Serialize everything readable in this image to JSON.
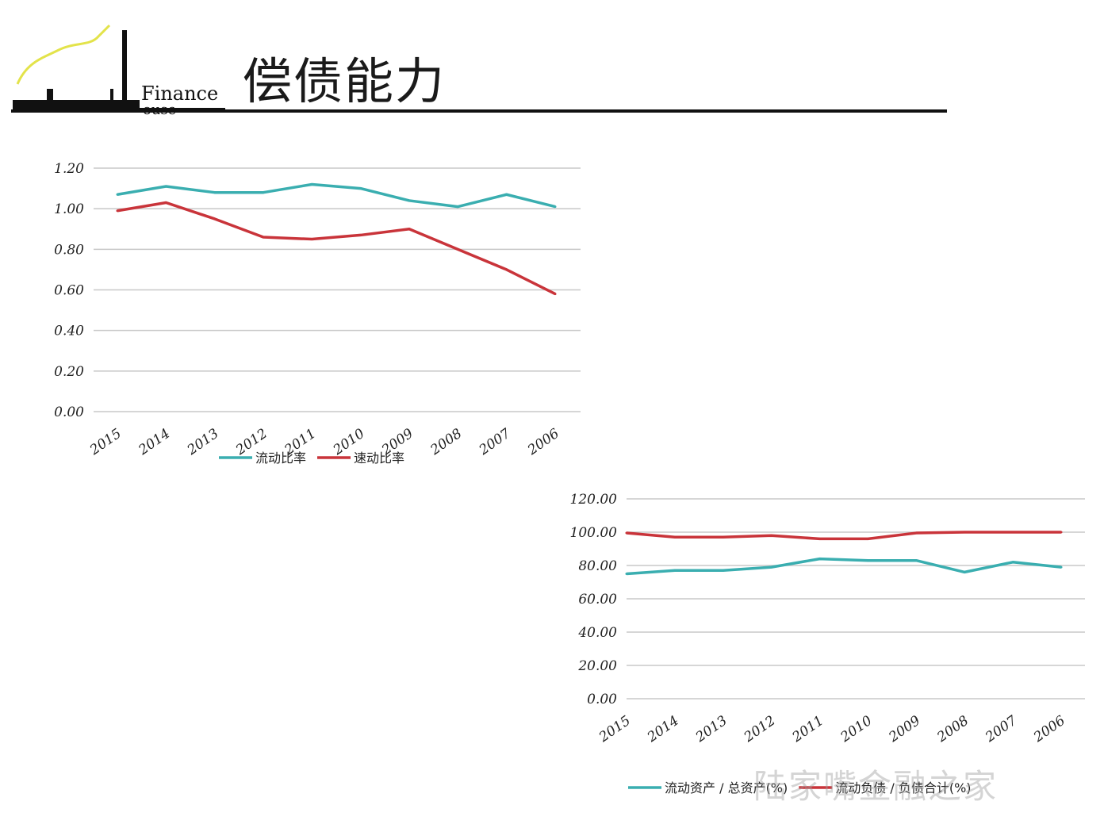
{
  "header": {
    "title": "偿债能力",
    "logo_text": "LujiazuiFinance House"
  },
  "watermark": "陆家嘴金融之家",
  "chart_data": [
    {
      "type": "line",
      "categories": [
        "2015",
        "2014",
        "2013",
        "2012",
        "2011",
        "2010",
        "2009",
        "2008",
        "2007",
        "2006"
      ],
      "ylim": [
        0,
        1.2
      ],
      "yticks": [
        "0.00",
        "0.20",
        "0.40",
        "0.60",
        "0.80",
        "1.00",
        "1.20"
      ],
      "grid": true,
      "legend": "bottom",
      "series": [
        {
          "name": "流动比率",
          "color": "#3aaeb0",
          "values": [
            1.07,
            1.11,
            1.08,
            1.08,
            1.12,
            1.1,
            1.04,
            1.01,
            1.07,
            1.01
          ]
        },
        {
          "name": "速动比率",
          "color": "#c9343a",
          "values": [
            0.99,
            1.03,
            0.95,
            0.86,
            0.85,
            0.87,
            0.9,
            0.8,
            0.7,
            0.58
          ]
        }
      ]
    },
    {
      "type": "line",
      "categories": [
        "2015",
        "2014",
        "2013",
        "2012",
        "2011",
        "2010",
        "2009",
        "2008",
        "2007",
        "2006"
      ],
      "ylim": [
        0,
        120
      ],
      "yticks": [
        "0.00",
        "20.00",
        "40.00",
        "60.00",
        "80.00",
        "100.00",
        "120.00"
      ],
      "grid": true,
      "legend": "bottom",
      "series": [
        {
          "name": "流动资产 / 总资产(%)",
          "color": "#3aaeb0",
          "values": [
            75,
            77,
            77,
            79,
            84,
            83,
            83,
            76,
            82,
            79
          ]
        },
        {
          "name": "流动负债 / 负债合计(%)",
          "color": "#c9343a",
          "values": [
            99.5,
            97,
            97,
            98,
            96,
            96,
            99.5,
            100,
            100,
            100
          ]
        }
      ]
    }
  ]
}
